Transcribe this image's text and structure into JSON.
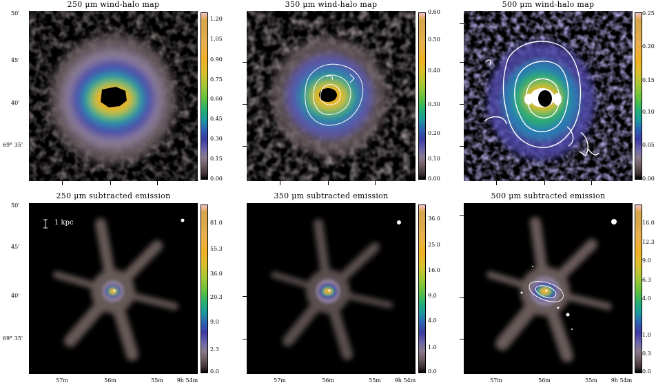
{
  "panels": [
    {
      "title": "250 μm wind-halo map",
      "cbar_labels": [
        "1.20",
        "1.05",
        "0.90",
        "0.75",
        "0.60",
        "0.45",
        "0.30",
        "0.15",
        "0.00"
      ]
    },
    {
      "title": "350 μm wind-halo map",
      "cbar_labels": [
        "0.60",
        "0.50",
        "0.40",
        "0.30",
        "0.20",
        "0.10",
        "0.00"
      ]
    },
    {
      "title": "500 μm wind-halo map",
      "cbar_labels": [
        "0.25",
        "0.20",
        "0.15",
        "0.10",
        "0.05",
        "0.00"
      ]
    },
    {
      "title": "250 μm subtracted emission",
      "cbar_labels": [
        "81.0",
        "55.3",
        "36.0",
        "20.3",
        "9.0",
        "2.3",
        "0.0"
      ],
      "scalebar": "1 kpc"
    },
    {
      "title": "350 μm subtracted emission",
      "cbar_labels": [
        "36.0",
        "25.0",
        "16.0",
        "9.0",
        "4.0",
        "1.0",
        "0.0"
      ]
    },
    {
      "title": "500 μm subtracted emission",
      "cbar_labels": [
        "16.0",
        "12.3",
        "9.0",
        "6.3",
        "4.0",
        "1.0",
        "0.3",
        "0.0"
      ]
    }
  ],
  "y_axis_top": [
    "50'",
    "45'",
    "40'",
    "69° 35'"
  ],
  "y_axis_bottom": [
    "50'",
    "45'",
    "40'",
    "69° 35'"
  ],
  "x_axis_labels": [
    "57m",
    "56m",
    "55m",
    "9h 54m"
  ]
}
